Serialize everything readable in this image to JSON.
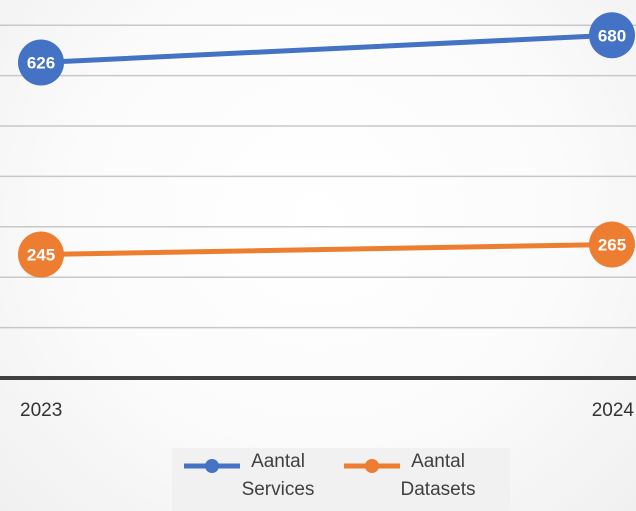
{
  "chart_data": {
    "type": "line",
    "x": [
      "2023",
      "2024"
    ],
    "series": [
      {
        "name": "Aantal Services",
        "values": [
          626,
          680
        ],
        "color": "#4472C4"
      },
      {
        "name": "Aantal Datasets",
        "values": [
          245,
          265
        ],
        "color": "#ED7D31"
      }
    ],
    "title": "",
    "xlabel": "",
    "ylabel": "",
    "ylim": [
      0,
      700
    ],
    "grid": true,
    "gridline_step": 100,
    "legend_position": "bottom",
    "data_labels": true
  },
  "legend": {
    "items": [
      {
        "line1": "Aantal",
        "line2": "Services"
      },
      {
        "line1": "Aantal",
        "line2": "Datasets"
      }
    ]
  }
}
